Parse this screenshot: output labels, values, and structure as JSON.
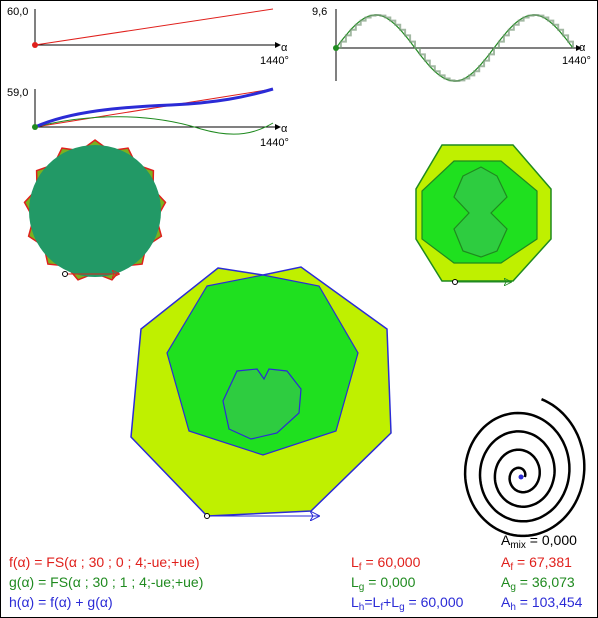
{
  "graph_f": {
    "y_max_label": "60,0",
    "x_axis_label": "α",
    "x_max_label": "1440°"
  },
  "graph_g": {
    "y_max_label": "9,6",
    "x_axis_label": "α",
    "x_max_label": "1440°"
  },
  "graph_h": {
    "y_max_label": "59,0",
    "x_axis_label": "α",
    "x_max_label": "1440°"
  },
  "colors": {
    "f": "#e0201c",
    "g": "#1f8a1f",
    "h": "#2b2bd6",
    "dark_fill": "#229966",
    "mid_fill": "#1fe01f",
    "light_fill": "#bff000",
    "inner_fill": "#2ecc40"
  },
  "formulas": {
    "f": "f(α) = FS(α ; 30 ; 0 ; 4;-ue;+ue)",
    "g": "g(α) = FS(α ; 30 ; 1 ; 4;-ue;+ue)",
    "h": "h(α) = f(α) + g(α)"
  },
  "lengths": {
    "lf_sym": "L",
    "lf_sub": "f",
    "lf_val": "= 60,000",
    "lg_sym": "L",
    "lg_sub": "g",
    "lg_val": "= 0,000",
    "lh_sym": "L",
    "lh_sub": "h",
    "lh_eq": "=L",
    "lh_sub2": "f",
    "lh_plus": "+L",
    "lh_sub3": "g",
    "lh_val": "= 60,000"
  },
  "areas": {
    "amix_sym": "A",
    "amix_sub": "mix",
    "amix_val": "= 0,000",
    "af_sym": "A",
    "af_sub": "f",
    "af_val": "= 67,381",
    "ag_sym": "A",
    "ag_sub": "g",
    "ag_val": "= 36,073",
    "ah_sym": "A",
    "ah_sub": "h",
    "ah_val": "= 103,454"
  }
}
